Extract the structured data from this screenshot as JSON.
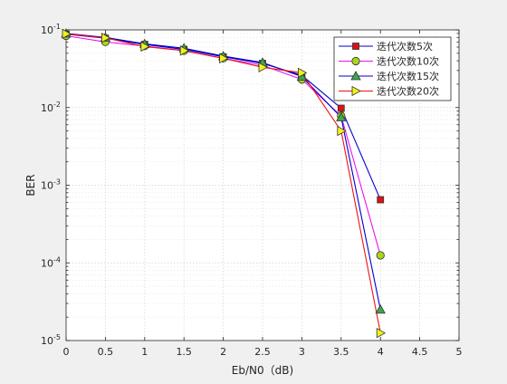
{
  "chart_data": {
    "type": "line",
    "title": "",
    "xlabel": "Eb/N0（dB)",
    "ylabel": "BER",
    "y_scale": "log",
    "xlim": [
      0,
      5
    ],
    "ylim": [
      1e-05,
      0.1
    ],
    "x_ticks": [
      "0",
      "0.5",
      "1",
      "1.5",
      "2",
      "2.5",
      "3",
      "3.5",
      "4",
      "4.5",
      "5"
    ],
    "y_ticks": [
      {
        "base": "10",
        "exp": "-5"
      },
      {
        "base": "10",
        "exp": "-4"
      },
      {
        "base": "10",
        "exp": "-3"
      },
      {
        "base": "10",
        "exp": "-2"
      },
      {
        "base": "10",
        "exp": "-1"
      }
    ],
    "grid": true,
    "legend_position": "top-right",
    "x": [
      0,
      0.5,
      1,
      1.5,
      2,
      2.5,
      3,
      3.5,
      4
    ],
    "series": [
      {
        "name": "迭代次数5次",
        "line_color": "#0000cc",
        "marker": "square",
        "marker_fill": "#dd1111",
        "values": [
          0.088,
          0.078,
          0.065,
          0.056,
          0.045,
          0.037,
          0.026,
          0.0098,
          0.00065
        ]
      },
      {
        "name": "迭代次数10次",
        "line_color": "#ee11ee",
        "marker": "circle",
        "marker_fill": "#a6d61a",
        "values": [
          0.084,
          0.07,
          0.062,
          0.054,
          0.043,
          0.035,
          0.023,
          0.0078,
          0.000125
        ]
      },
      {
        "name": "迭代次数15次",
        "line_color": "#0000cc",
        "marker": "triangle-up",
        "marker_fill": "#3ca84a",
        "values": [
          0.09,
          0.08,
          0.066,
          0.058,
          0.046,
          0.038,
          0.025,
          0.0075,
          2.5e-05
        ]
      },
      {
        "name": "迭代次数20次",
        "line_color": "#ee1111",
        "marker": "triangle-right",
        "marker_fill": "#f2f21a",
        "values": [
          0.089,
          0.079,
          0.061,
          0.054,
          0.043,
          0.033,
          0.028,
          0.005,
          1.25e-05
        ]
      }
    ]
  }
}
